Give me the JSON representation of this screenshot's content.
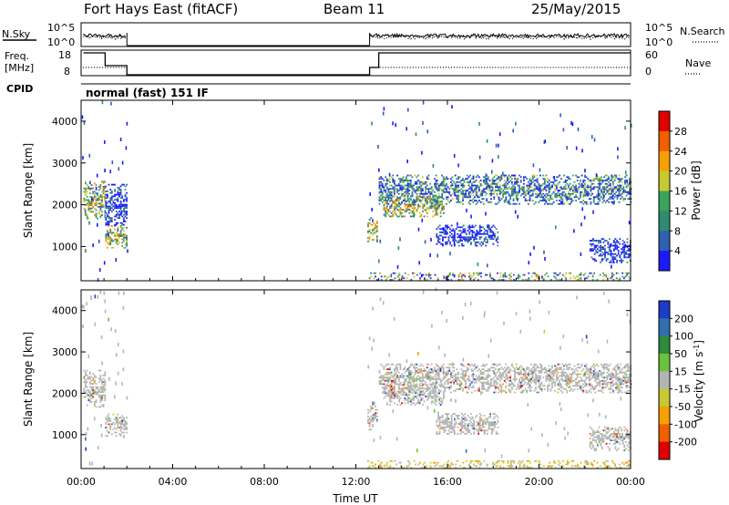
{
  "header": {
    "station": "Fort Hays East (fitACF)",
    "beam": "Beam 11",
    "date": "25/May/2015"
  },
  "labels": {
    "nsky": "N.Sky",
    "nsearch": "N.Search",
    "freq_line1": "Freq.",
    "freq_line2": "[MHz]",
    "nave": "Nave",
    "cpid": "CPID",
    "mode": "normal (fast) 151 IF",
    "nsky_top": "10^5",
    "nsky_bottom": "10^0",
    "nsearch_top": "10^5",
    "nsearch_bottom": "10^0",
    "freq_top": "18",
    "freq_bottom": "8",
    "nave_top": "60",
    "nave_bottom": "0",
    "power_axis": "Power [dB]",
    "velocity_axis": "Velocity [m s",
    "velocity_exp": "-1",
    "velocity_close": "]"
  },
  "chart_data": [
    {
      "type": "heatmap",
      "name": "power",
      "ylabel": "Slant Range [km]",
      "xlabel": "Time UT",
      "xticks": [
        "00:00",
        "04:00",
        "08:00",
        "12:00",
        "16:00",
        "20:00",
        "00:00"
      ],
      "yticks": [
        1000,
        2000,
        3000,
        4000
      ],
      "xlim_hours": [
        0,
        24
      ],
      "ylim_km": [
        180,
        4500
      ],
      "colorbar": {
        "label": "Power [dB]",
        "ticks": [
          4,
          8,
          12,
          16,
          20,
          24,
          28
        ],
        "colors": [
          "#1a1aff",
          "#2e5fb0",
          "#2f8a6e",
          "#3aa35c",
          "#c8c832",
          "#f5a000",
          "#f06000",
          "#e00000"
        ]
      },
      "regions": [
        {
          "t0": 0.1,
          "t1": 1.05,
          "r0": 1650,
          "r1": 2550,
          "level": "high"
        },
        {
          "t0": 1.05,
          "t1": 2.0,
          "r0": 950,
          "r1": 1500,
          "level": "high"
        },
        {
          "t0": 1.05,
          "t1": 2.0,
          "r0": 1500,
          "r1": 2500,
          "level": "low"
        },
        {
          "t0": 12.5,
          "t1": 12.9,
          "r0": 1100,
          "r1": 1700,
          "level": "high"
        },
        {
          "t0": 13.0,
          "t1": 24.0,
          "r0": 2000,
          "r1": 2700,
          "level": "mid"
        },
        {
          "t0": 13.2,
          "t1": 15.8,
          "r0": 1700,
          "r1": 2200,
          "level": "high"
        },
        {
          "t0": 15.5,
          "t1": 18.2,
          "r0": 1000,
          "r1": 1500,
          "level": "low"
        },
        {
          "t0": 22.2,
          "t1": 24.0,
          "r0": 600,
          "r1": 1200,
          "level": "low"
        },
        {
          "t0": 12.5,
          "t1": 24.0,
          "r0": 180,
          "r1": 380,
          "level": "noise"
        }
      ]
    },
    {
      "type": "heatmap",
      "name": "velocity",
      "ylabel": "Slant Range [km]",
      "xlabel": "Time UT",
      "xticks": [
        "00:00",
        "04:00",
        "08:00",
        "12:00",
        "16:00",
        "20:00",
        "00:00"
      ],
      "yticks": [
        1000,
        2000,
        3000,
        4000
      ],
      "xlim_hours": [
        0,
        24
      ],
      "ylim_km": [
        180,
        4500
      ],
      "colorbar": {
        "label": "Velocity [m s-1]",
        "ticks": [
          200,
          100,
          50,
          15,
          -15,
          -50,
          -100,
          -200
        ],
        "colors": [
          "#1e3cc8",
          "#2f6fb0",
          "#2f8a3a",
          "#6ac23a",
          "#b4b4b4",
          "#c8c832",
          "#f5a000",
          "#f06000",
          "#e00000"
        ]
      },
      "regions": [
        {
          "t0": 0.1,
          "t1": 1.05,
          "r0": 1650,
          "r1": 2550,
          "level": "gray"
        },
        {
          "t0": 1.05,
          "t1": 2.0,
          "r0": 950,
          "r1": 1500,
          "level": "gray"
        },
        {
          "t0": 12.5,
          "t1": 12.9,
          "r0": 1100,
          "r1": 1700,
          "level": "gray"
        },
        {
          "t0": 13.0,
          "t1": 24.0,
          "r0": 2000,
          "r1": 2700,
          "level": "gray"
        },
        {
          "t0": 13.2,
          "t1": 15.8,
          "r0": 1700,
          "r1": 2200,
          "level": "gray"
        },
        {
          "t0": 15.5,
          "t1": 18.2,
          "r0": 1000,
          "r1": 1500,
          "level": "gray"
        },
        {
          "t0": 22.2,
          "t1": 24.0,
          "r0": 600,
          "r1": 1200,
          "level": "gray"
        },
        {
          "t0": 12.5,
          "t1": 24.0,
          "r0": 180,
          "r1": 380,
          "level": "orange"
        }
      ]
    }
  ]
}
